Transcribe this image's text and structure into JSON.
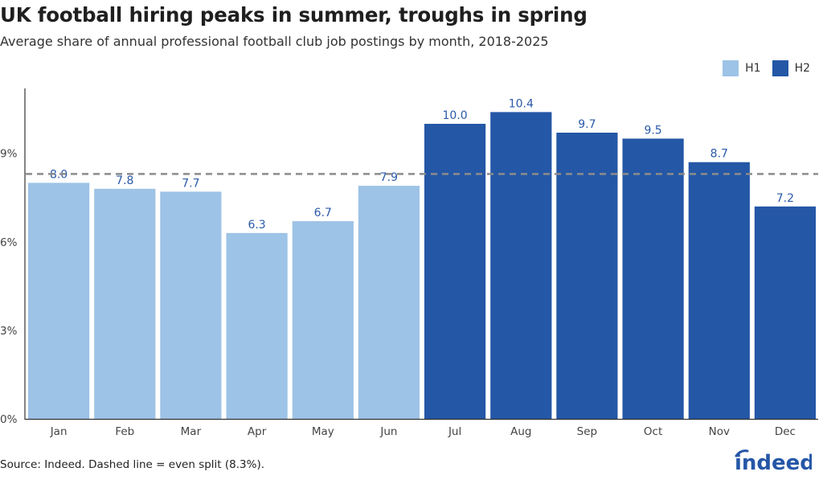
{
  "header": {
    "title": "UK football hiring peaks in summer, troughs in spring",
    "subtitle": "Average share of annual professional football club job postings by month, 2018-2025"
  },
  "legend": {
    "items": [
      {
        "label": "H1",
        "color": "#9dc3e6"
      },
      {
        "label": "H2",
        "color": "#2457a6"
      }
    ]
  },
  "footer": {
    "source": "Source: Indeed. Dashed line = even split (8.3%).",
    "logo_text": "indeed"
  },
  "colors": {
    "h1": "#9dc3e6",
    "h2": "#2457a6",
    "reference_line": "#8c8c8c",
    "data_label": "#2a5aa8",
    "axis": "#333333"
  },
  "chart_data": {
    "type": "bar",
    "title": "UK football hiring peaks in summer, troughs in spring",
    "subtitle": "Average share of annual professional football club job postings by month, 2018-2025",
    "categories": [
      "Jan",
      "Feb",
      "Mar",
      "Apr",
      "May",
      "Jun",
      "Jul",
      "Aug",
      "Sep",
      "Oct",
      "Nov",
      "Dec"
    ],
    "series": [
      {
        "name": "H1",
        "values": [
          8.0,
          7.8,
          7.7,
          6.3,
          6.7,
          7.9,
          null,
          null,
          null,
          null,
          null,
          null
        ]
      },
      {
        "name": "H2",
        "values": [
          null,
          null,
          null,
          null,
          null,
          null,
          10.0,
          10.4,
          9.7,
          9.5,
          8.7,
          7.2
        ]
      }
    ],
    "data_labels": [
      "8.0",
      "7.8",
      "7.7",
      "6.3",
      "6.7",
      "7.9",
      "10.0",
      "10.4",
      "9.7",
      "9.5",
      "8.7",
      "7.2"
    ],
    "reference_line": {
      "value": 8.3,
      "style": "dashed"
    },
    "y_ticks": [
      0,
      3,
      6,
      9
    ],
    "y_tick_labels": [
      "0%",
      "3%",
      "6%",
      "9%"
    ],
    "ylim": [
      0,
      11.2
    ],
    "xlabel": "",
    "ylabel": "",
    "grid": false,
    "legend_position": "top-right"
  }
}
